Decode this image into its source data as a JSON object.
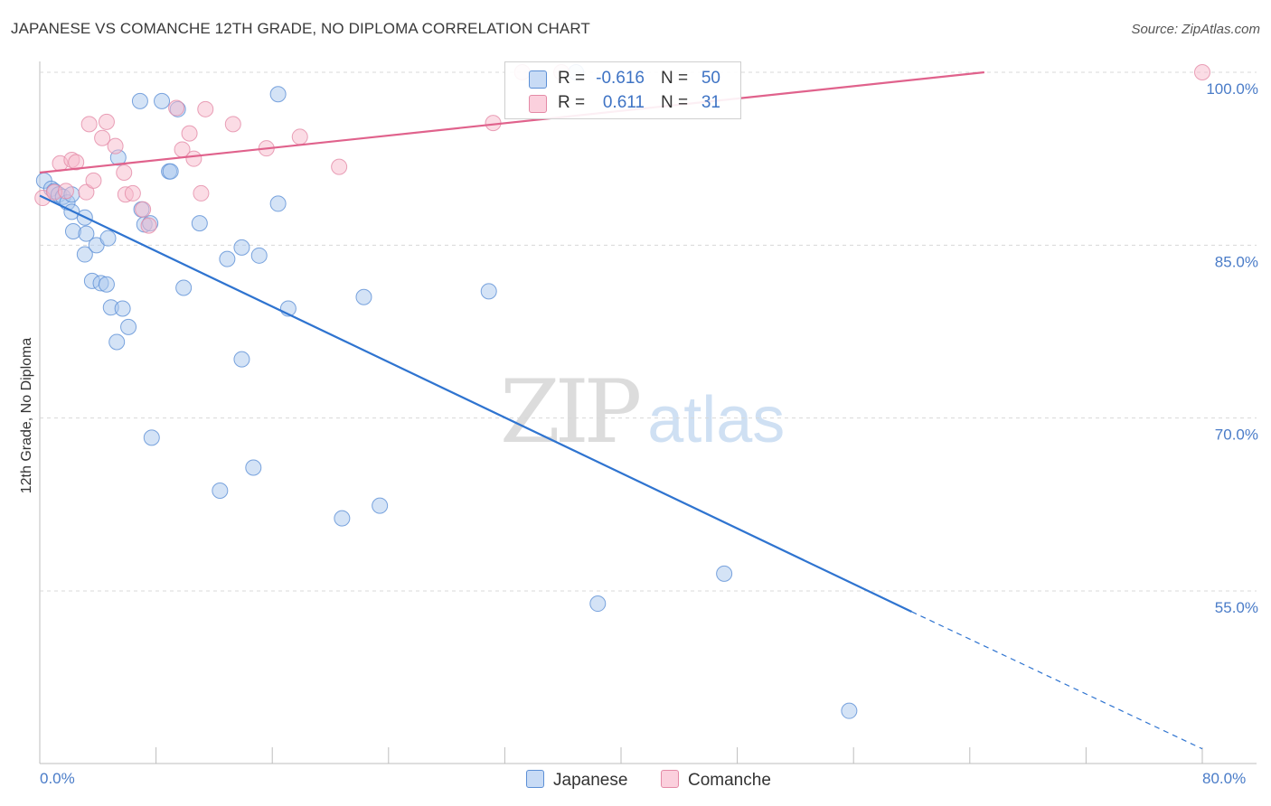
{
  "header": {
    "title": "JAPANESE VS COMANCHE 12TH GRADE, NO DIPLOMA CORRELATION CHART",
    "source": "Source: ZipAtlas.com"
  },
  "watermark": {
    "zip": "ZIP",
    "atlas": "atlas"
  },
  "legend": {
    "rows": [
      {
        "r_label": "R =",
        "r_value": "-0.616",
        "n_label": "N =",
        "n_value": "50",
        "color": "#a9c7ee"
      },
      {
        "r_label": "R =",
        "r_value": "0.611",
        "n_label": "N =",
        "n_value": "31",
        "color": "#f7b9cc"
      }
    ]
  },
  "bottom_legend": {
    "japanese": "Japanese",
    "comanche": "Comanche"
  },
  "colors": {
    "japanese_fill": "#a9c7ee",
    "japanese_stroke": "#5b8fd6",
    "japanese_line": "#2f74d0",
    "comanche_fill": "#f7b9cc",
    "comanche_stroke": "#e48aa6",
    "comanche_line": "#e0628c",
    "tick_label": "#4a7cc8",
    "grid": "#d8d8d8"
  },
  "chart_data": {
    "type": "scatter",
    "title": "JAPANESE VS COMANCHE 12TH GRADE, NO DIPLOMA CORRELATION CHART",
    "xlabel": "",
    "ylabel": "12th Grade, No Diploma",
    "xlim": [
      0,
      80
    ],
    "ylim": [
      41,
      101
    ],
    "x_tick_labels": [
      "0.0%",
      "80.0%"
    ],
    "y_ticks": [
      55,
      70,
      85,
      100
    ],
    "y_tick_labels": [
      "55.0%",
      "70.0%",
      "85.0%",
      "100.0%"
    ],
    "grid": true,
    "legend_position": "top-center",
    "series": [
      {
        "name": "Japanese",
        "points": [
          [
            0.3,
            90.6
          ],
          [
            0.8,
            89.9
          ],
          [
            1.0,
            89.7
          ],
          [
            1.3,
            89.4
          ],
          [
            1.6,
            89.2
          ],
          [
            1.9,
            88.7
          ],
          [
            2.2,
            89.4
          ],
          [
            2.2,
            87.9
          ],
          [
            3.1,
            87.4
          ],
          [
            2.3,
            86.2
          ],
          [
            3.1,
            84.2
          ],
          [
            3.2,
            86.0
          ],
          [
            3.9,
            85.0
          ],
          [
            4.7,
            85.6
          ],
          [
            3.6,
            81.9
          ],
          [
            4.2,
            81.7
          ],
          [
            4.6,
            81.6
          ],
          [
            4.9,
            79.6
          ],
          [
            5.7,
            79.5
          ],
          [
            6.1,
            77.9
          ],
          [
            5.3,
            76.6
          ],
          [
            6.9,
            97.5
          ],
          [
            8.4,
            97.5
          ],
          [
            9.5,
            96.8
          ],
          [
            5.4,
            92.6
          ],
          [
            7.0,
            88.1
          ],
          [
            7.2,
            86.8
          ],
          [
            7.6,
            86.9
          ],
          [
            8.9,
            91.4
          ],
          [
            9.0,
            91.4
          ],
          [
            9.9,
            81.3
          ],
          [
            11.0,
            86.9
          ],
          [
            12.9,
            83.8
          ],
          [
            13.9,
            84.8
          ],
          [
            15.1,
            84.1
          ],
          [
            16.4,
            98.1
          ],
          [
            16.4,
            88.6
          ],
          [
            17.1,
            79.5
          ],
          [
            22.3,
            80.5
          ],
          [
            30.9,
            81.0
          ],
          [
            36.9,
            100.0
          ],
          [
            7.7,
            68.3
          ],
          [
            12.4,
            63.7
          ],
          [
            14.7,
            65.7
          ],
          [
            13.9,
            75.1
          ],
          [
            20.8,
            61.3
          ],
          [
            23.4,
            62.4
          ],
          [
            38.4,
            53.9
          ],
          [
            47.1,
            56.5
          ],
          [
            55.7,
            44.6
          ]
        ]
      },
      {
        "name": "Comanche",
        "points": [
          [
            0.2,
            89.1
          ],
          [
            1.0,
            89.6
          ],
          [
            1.4,
            92.1
          ],
          [
            1.8,
            89.7
          ],
          [
            2.2,
            92.4
          ],
          [
            2.5,
            92.2
          ],
          [
            3.2,
            89.6
          ],
          [
            3.4,
            95.5
          ],
          [
            3.7,
            90.6
          ],
          [
            4.3,
            94.3
          ],
          [
            4.6,
            95.7
          ],
          [
            5.2,
            93.6
          ],
          [
            5.8,
            91.3
          ],
          [
            5.9,
            89.4
          ],
          [
            6.4,
            89.5
          ],
          [
            7.1,
            88.1
          ],
          [
            7.5,
            86.7
          ],
          [
            9.4,
            96.9
          ],
          [
            9.8,
            93.3
          ],
          [
            10.3,
            94.7
          ],
          [
            10.6,
            92.5
          ],
          [
            11.1,
            89.5
          ],
          [
            11.4,
            96.8
          ],
          [
            13.3,
            95.5
          ],
          [
            15.6,
            93.4
          ],
          [
            17.9,
            94.4
          ],
          [
            20.6,
            91.8
          ],
          [
            31.2,
            95.6
          ],
          [
            33.2,
            100.0
          ],
          [
            35.9,
            100.0
          ],
          [
            80.0,
            100.0
          ]
        ]
      }
    ],
    "trend_lines": [
      {
        "name": "Japanese",
        "solid": [
          [
            0,
            89.3
          ],
          [
            60,
            53.2
          ]
        ],
        "dashed": [
          [
            60,
            53.2
          ],
          [
            80,
            41.3
          ]
        ]
      },
      {
        "name": "Comanche",
        "solid": [
          [
            0,
            91.3
          ],
          [
            65,
            100.0
          ]
        ]
      }
    ]
  }
}
